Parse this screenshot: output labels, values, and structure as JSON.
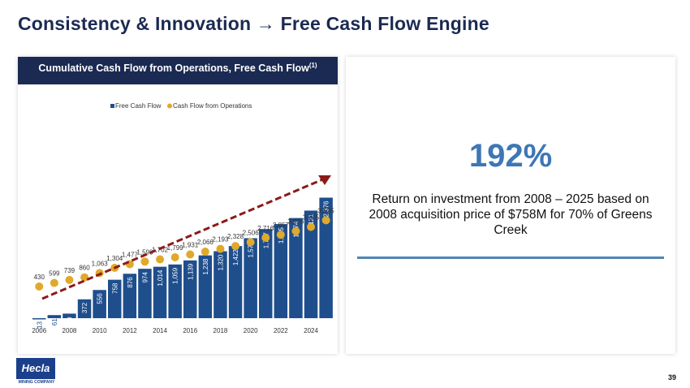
{
  "title": "Consistency & Innovation → Free Cash Flow Engine",
  "left_panel": {
    "header": "Cumulative Cash Flow from Operations, Free Cash Flow",
    "header_footnote": "(1)"
  },
  "right_panel": {
    "big_value": "192%",
    "description": "Return on investment from 2008 – 2025 based on 2008 acquisition price of $758M for 70% of Greens Creek"
  },
  "logo": {
    "name": "Hecla",
    "sub": "MINING COMPANY"
  },
  "page_number": "39",
  "colors": {
    "navy": "#1b2a52",
    "bar": "#1f4e8c",
    "dot": "#e0a92a",
    "arrow": "#8b1a1a",
    "accent": "#3d77b5"
  },
  "chart_data": {
    "type": "bar",
    "years": [
      2006,
      2007,
      2008,
      2009,
      2010,
      2011,
      2012,
      2013,
      2014,
      2015,
      2016,
      2017,
      2018,
      2019,
      2020,
      2021,
      2022,
      2023,
      2024,
      2025
    ],
    "x_tick_labels": [
      "2006",
      "2008",
      "2010",
      "2012",
      "2014",
      "2016",
      "2018",
      "2020",
      "2022",
      "2024"
    ],
    "series": [
      {
        "name": "Free Cash Flow",
        "kind": "bar",
        "values": [
          -13,
          61,
          90,
          372,
          556,
          758,
          876,
          974,
          1014,
          1059,
          1139,
          1238,
          1320,
          1422,
          1577,
          1757,
          1855,
          1974,
          2121,
          2376
        ],
        "labels": [
          "-13",
          "61",
          "90",
          "372",
          "556",
          "758",
          "876",
          "974",
          "1,014",
          "1,059",
          "1,139",
          "1,238",
          "1,320",
          "1,422",
          "1,577",
          "1,757",
          "1,855",
          "1,974",
          "2,121",
          "2,376"
        ]
      },
      {
        "name": "Cash Flow from Operations",
        "kind": "dot",
        "values": [
          430,
          599,
          739,
          860,
          1063,
          1304,
          1477,
          1598,
          1702,
          1799,
          1931,
          2066,
          2193,
          2328,
          2506,
          2716,
          2857,
          3026,
          3225,
          3535
        ],
        "labels": [
          "430",
          "599",
          "739",
          "860",
          "1,063",
          "1,304",
          "1,477",
          "1,598",
          "1,702",
          "1,799",
          "1,931",
          "2,066",
          "2,193",
          "2,328",
          "2,506",
          "2,716",
          "2,857",
          "3,026",
          "3,225",
          "3,535"
        ]
      }
    ],
    "legend_position": "top",
    "grid": false,
    "ylim": [
      -100,
      3700
    ]
  }
}
